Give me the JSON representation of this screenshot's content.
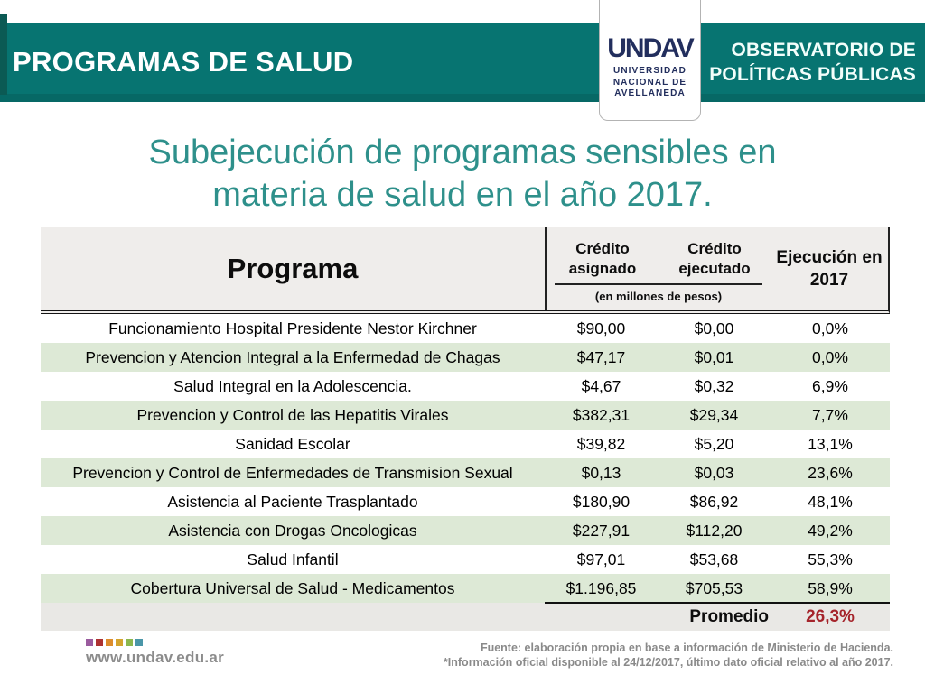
{
  "banner": {
    "title": "PROGRAMAS DE SALUD",
    "observatory_line1": "OBSERVATORIO DE",
    "observatory_line2": "POLÍTICAS PÚBLICAS"
  },
  "logo": {
    "wordmark": "UNDAV",
    "org_lines": [
      "UNIVERSIDAD",
      "NACIONAL DE",
      "AVELLANEDA"
    ]
  },
  "heading": {
    "line1": "Subejecución de programas sensibles en",
    "line2": "materia de salud en el año 2017."
  },
  "table": {
    "col_programa": "Programa",
    "col_asignado": "Crédito\nasignado",
    "col_ejecutado": "Crédito\nejecutado",
    "unit_note": "(en millones de pesos)",
    "col_ejecucion": "Ejecución en\n2017",
    "rows": [
      {
        "programa": "Funcionamiento Hospital Presidente Nestor Kirchner",
        "asignado": "$90,00",
        "ejecutado": "$0,00",
        "ejecucion": "0,0%"
      },
      {
        "programa": "Prevencion y Atencion Integral a la Enfermedad de Chagas",
        "asignado": "$47,17",
        "ejecutado": "$0,01",
        "ejecucion": "0,0%"
      },
      {
        "programa": "Salud Integral en la Adolescencia.",
        "asignado": "$4,67",
        "ejecutado": "$0,32",
        "ejecucion": "6,9%"
      },
      {
        "programa": "Prevencion y Control de las Hepatitis Virales",
        "asignado": "$382,31",
        "ejecutado": "$29,34",
        "ejecucion": "7,7%"
      },
      {
        "programa": "Sanidad Escolar",
        "asignado": "$39,82",
        "ejecutado": "$5,20",
        "ejecucion": "13,1%"
      },
      {
        "programa": "Prevencion y Control de Enfermedades de Transmision Sexual",
        "asignado": "$0,13",
        "ejecutado": "$0,03",
        "ejecucion": "23,6%"
      },
      {
        "programa": "Asistencia al Paciente Trasplantado",
        "asignado": "$180,90",
        "ejecutado": "$86,92",
        "ejecucion": "48,1%"
      },
      {
        "programa": "Asistencia con Drogas Oncologicas",
        "asignado": "$227,91",
        "ejecutado": "$112,20",
        "ejecucion": "49,2%"
      },
      {
        "programa": "Salud Infantil",
        "asignado": "$97,01",
        "ejecutado": "$53,68",
        "ejecucion": "55,3%"
      },
      {
        "programa": "Cobertura Universal de Salud - Medicamentos",
        "asignado": "$1.196,85",
        "ejecutado": "$705,53",
        "ejecucion": "58,9%"
      }
    ],
    "promedio_label": "Promedio",
    "promedio_value": "26,3%"
  },
  "footer": {
    "website": "www.undav.edu.ar",
    "source_line1": "Fuente: elaboración propia en base a información de Ministerio de Hacienda.",
    "source_line2": "*Información oficial disponible al 24/12/2017, último dato oficial relativo al año 2017.",
    "dot_colors": [
      "#9a5b9e",
      "#ad3231",
      "#dd8d2c",
      "#d3a42e",
      "#8bb74e",
      "#4a96a8"
    ]
  },
  "colors": {
    "banner_teal": "#077471",
    "banner_dark_accent": "#0b5a54",
    "title_teal": "#2e908b",
    "row_green": "#dde9d6",
    "promedio_red": "#a5242b",
    "navy": "#222e5d",
    "footer_gray": "#8a8a8a"
  }
}
